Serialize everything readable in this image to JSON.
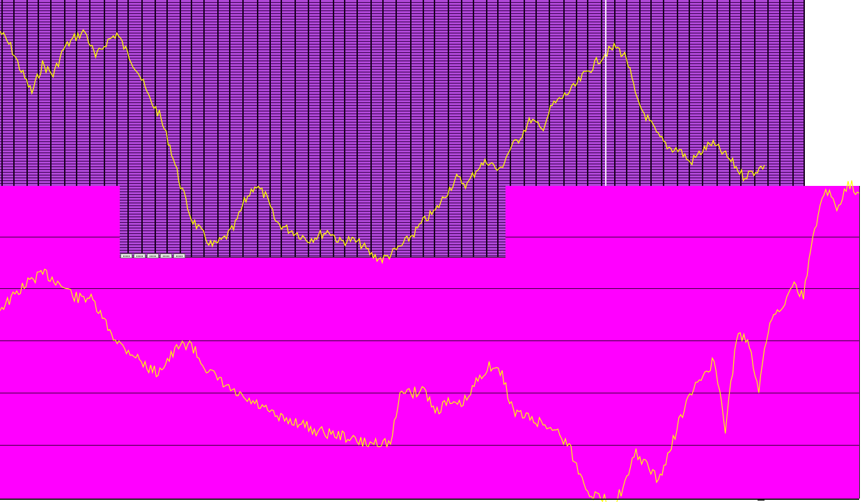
{
  "windows": {
    "back_panel_title": "",
    "front_panel_title": ""
  },
  "colors": {
    "front_background": "#ff00ff",
    "back_column_fill": "#a040c0",
    "back_column_line": "#1a0022",
    "grid_line": "#3a003a",
    "price_line": "#ffff00",
    "desktop": "#ffffff"
  },
  "top_chart": {
    "series": [
      1.0,
      0.93,
      0.82,
      0.72,
      0.85,
      0.8,
      0.92,
      0.97,
      1.0,
      0.88,
      0.95,
      0.99,
      0.9,
      0.82,
      0.7,
      0.62,
      0.48,
      0.3,
      0.15,
      0.08,
      0.02,
      0.05,
      0.1,
      0.22,
      0.3,
      0.25,
      0.13,
      0.1,
      0.08,
      0.05,
      0.07,
      0.09,
      0.04,
      0.05,
      0.03,
      -0.02,
      -0.04,
      -0.01,
      0.03,
      0.08,
      0.14,
      0.18,
      0.26,
      0.33,
      0.3,
      0.38,
      0.41,
      0.36,
      0.46,
      0.52,
      0.6,
      0.55,
      0.66,
      0.7,
      0.74,
      0.8,
      0.85,
      0.9,
      0.93,
      0.88,
      0.68,
      0.6,
      0.52,
      0.47,
      0.46,
      0.4,
      0.45,
      0.49,
      0.45,
      0.4,
      0.34,
      0.36,
      0.39
    ]
  },
  "bottom_chart": {
    "series": [
      0.75,
      0.79,
      0.84,
      0.88,
      0.9,
      0.87,
      0.83,
      0.79,
      0.8,
      0.72,
      0.64,
      0.58,
      0.55,
      0.5,
      0.47,
      0.52,
      0.58,
      0.6,
      0.52,
      0.46,
      0.42,
      0.38,
      0.35,
      0.33,
      0.3,
      0.27,
      0.26,
      0.25,
      0.22,
      0.21,
      0.2,
      0.19,
      0.17,
      0.16,
      0.17,
      0.16,
      0.4,
      0.38,
      0.4,
      0.3,
      0.34,
      0.32,
      0.36,
      0.46,
      0.5,
      0.46,
      0.3,
      0.28,
      0.26,
      0.24,
      0.21,
      0.15,
      0.02,
      -0.06,
      -0.08,
      -0.1,
      -0.02,
      0.12,
      0.06,
      0.0,
      0.12,
      0.28,
      0.38,
      0.46,
      0.52,
      0.22,
      0.62,
      0.62,
      0.4,
      0.7,
      0.75,
      0.86,
      0.8,
      1.1,
      1.28,
      1.18,
      1.3,
      1.25
    ]
  },
  "status_text": "",
  "back_tabs": [
    {
      "label": "",
      "icon": "tab-grip-icon"
    },
    {
      "label": "",
      "icon": "tab-grip-icon"
    },
    {
      "label": "",
      "icon": "tab-grip-icon"
    },
    {
      "label": "",
      "icon": "tab-grip-icon"
    },
    {
      "label": "",
      "icon": "tab-grip-icon"
    }
  ]
}
